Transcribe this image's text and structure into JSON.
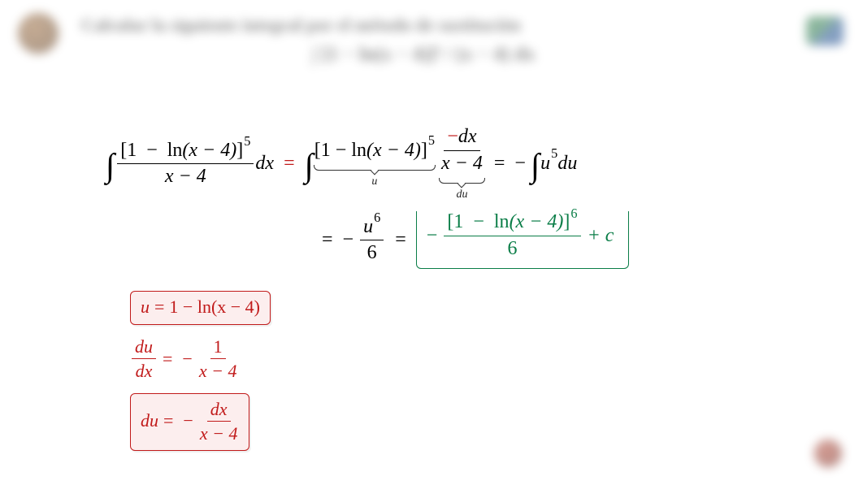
{
  "colors": {
    "red": "#c11a1a",
    "green": "#0a7d47",
    "black": "#000000",
    "background": "#ffffff"
  },
  "header": {
    "title": "Calcular la siguiente integral por el método de sustitución",
    "formula_placeholder": "∫ [1 − ln(x − 4)]⁵ / (x − 4) dx"
  },
  "tokens": {
    "int": "∫",
    "eq": "=",
    "minus": "−",
    "plus_c": "+ c",
    "dx": "dx",
    "du": "du",
    "u": "u",
    "one": "1",
    "six": "6",
    "lparen": "[",
    "rparen": "]",
    "ln": "ln",
    "xminus4": "x − 4",
    "xminus4p": "(x − 4)"
  },
  "exponents": {
    "five": "5",
    "six": "6"
  },
  "ubrace_labels": {
    "u": "u",
    "du": "du"
  },
  "substitution": {
    "u_def_lhs": "u",
    "u_def_rhs": "1 − ln(x − 4)",
    "du_dx_lhs_top": "du",
    "du_dx_lhs_bot": "dx",
    "du_dx_rhs_top": "1",
    "du_dx_rhs_bot": "x − 4",
    "du_rhs_top": "dx",
    "du_rhs_bot": "x − 4",
    "du_lhs": "du"
  },
  "typography": {
    "base_fontsize_pt": 18,
    "sup_ratio": 0.68
  }
}
